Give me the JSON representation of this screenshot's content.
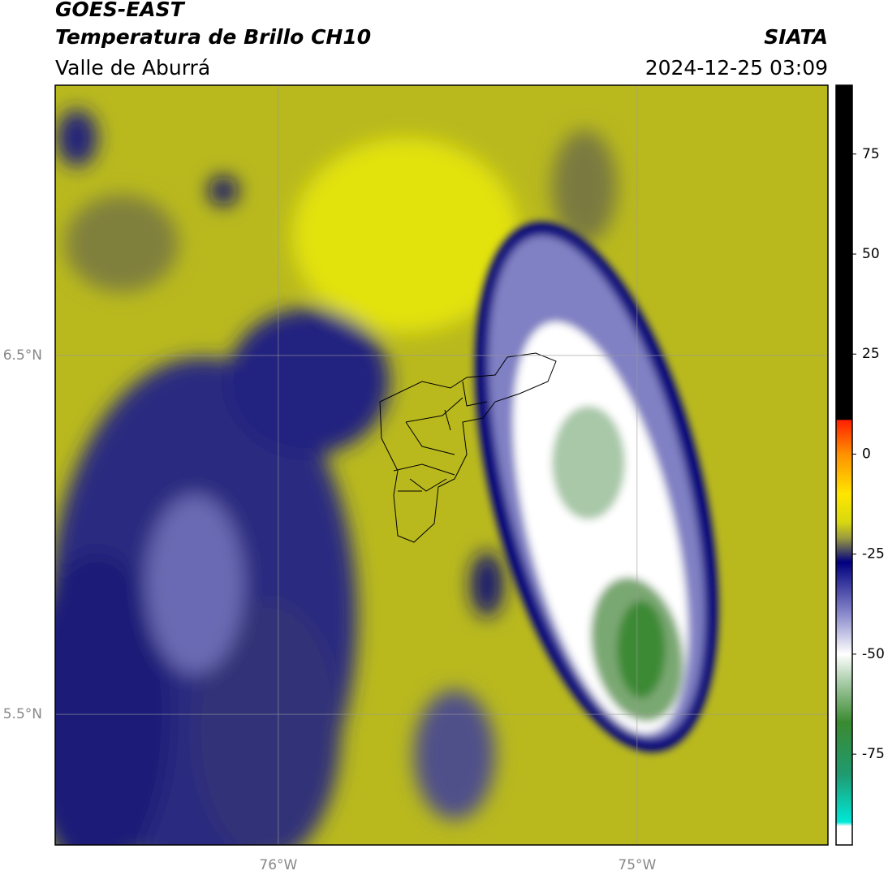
{
  "header": {
    "title": "GOES-EAST",
    "subtitle": "Temperatura de Brillo CH10",
    "region": "Valle de Aburrá",
    "source": "SIATA",
    "datetime": "2024-12-25 03:09"
  },
  "map": {
    "xlim": [
      -76.622,
      -74.468
    ],
    "ylim": [
      5.136,
      7.253
    ],
    "xticks": [
      {
        "value": -76,
        "label": "76°W"
      },
      {
        "value": -75,
        "label": "75°W"
      }
    ],
    "yticks": [
      {
        "value": 5.5,
        "label": "5.5°N"
      },
      {
        "value": 6.5,
        "label": "6.5°N"
      }
    ],
    "grid": true
  },
  "colorbar": {
    "lim": [
      -97.7,
      92.2
    ],
    "ticks": [
      -75,
      -50,
      -25,
      0,
      25,
      50,
      75
    ],
    "stops": [
      {
        "value": 92.2,
        "color": "#000000"
      },
      {
        "value": 8.6,
        "color": "#000000"
      },
      {
        "value": 8.5,
        "color": "#ff2000"
      },
      {
        "value": 0,
        "color": "#ff9000"
      },
      {
        "value": -10,
        "color": "#ffe600"
      },
      {
        "value": -17,
        "color": "#d8d810"
      },
      {
        "value": -21,
        "color": "#9a9a40"
      },
      {
        "value": -27,
        "color": "#000080"
      },
      {
        "value": -40,
        "color": "#8a8acc"
      },
      {
        "value": -50,
        "color": "#ffffff"
      },
      {
        "value": -57,
        "color": "#a8cca8"
      },
      {
        "value": -67,
        "color": "#3a8a30"
      },
      {
        "value": -80,
        "color": "#209a70"
      },
      {
        "value": -92,
        "color": "#00e8d8"
      },
      {
        "value": -93,
        "color": "#ffffff"
      },
      {
        "value": -97.7,
        "color": "#ffffff"
      }
    ]
  }
}
